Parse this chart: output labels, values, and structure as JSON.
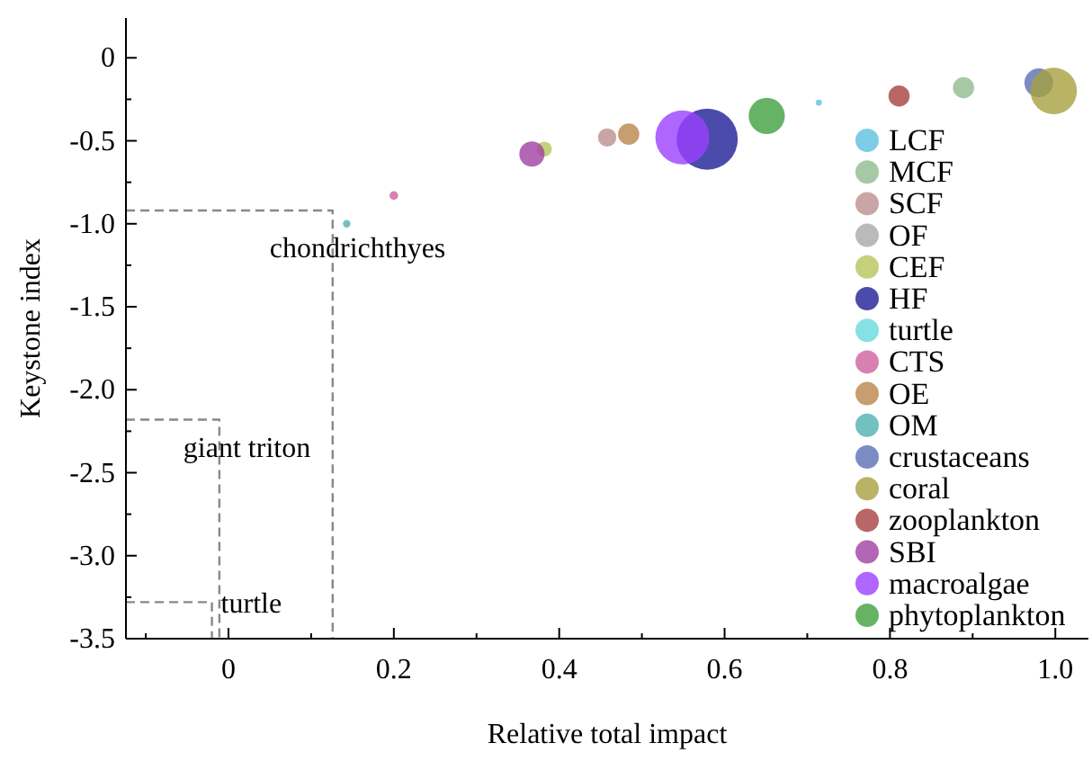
{
  "chart_data": {
    "type": "bubble",
    "xlabel": "Relative total impact",
    "ylabel": "Keystone index",
    "xlim": [
      -0.124,
      1.04
    ],
    "ylim": [
      -3.5,
      0.24
    ],
    "xticks": [
      0,
      0.2,
      0.4,
      0.6,
      0.8,
      {
        "value": 1,
        "label": "1.0"
      }
    ],
    "yticks": [
      0,
      -0.5,
      {
        "value": -1,
        "label": "-1.0"
      },
      -1.5,
      {
        "value": -2,
        "label": "-2.0"
      },
      -2.5,
      {
        "value": -3,
        "label": "-3.0"
      },
      -3.5
    ],
    "legend": "right",
    "grid": false,
    "series": [
      {
        "name": "LCF",
        "color": "#5bc0de",
        "x": [
          0.714
        ],
        "values": [
          -0.27
        ],
        "sizes": [
          0.01
        ]
      },
      {
        "name": "MCF",
        "color": "#8fbc8f",
        "x": [
          0.889
        ],
        "values": [
          -0.18
        ],
        "sizes": [
          0.12
        ]
      },
      {
        "name": "SCF",
        "color": "#bc8f8f",
        "x": [
          0.458
        ],
        "values": [
          -0.48
        ],
        "sizes": [
          0.09
        ]
      },
      {
        "name": "OF",
        "color": "#a9a9a9"
      },
      {
        "name": "CEF",
        "color": "#b5c45a",
        "x": [
          0.382
        ],
        "values": [
          -0.55
        ],
        "sizes": [
          0.06
        ]
      },
      {
        "name": "HF",
        "color": "#1e1e96",
        "x": [
          0.579
        ],
        "values": [
          -0.49
        ],
        "sizes": [
          1
        ]
      },
      {
        "name": "turtle",
        "color": "#66d9dc"
      },
      {
        "name": "CTS",
        "color": "#d060a0",
        "x": [
          0.2
        ],
        "values": [
          -0.83
        ],
        "sizes": [
          0.02
        ]
      },
      {
        "name": "OE",
        "color": "#b8864b",
        "x": [
          0.484
        ],
        "values": [
          -0.46
        ],
        "sizes": [
          0.12
        ]
      },
      {
        "name": "OM",
        "color": "#4fb0b0",
        "x": [
          0.143
        ],
        "values": [
          -1.0
        ],
        "sizes": [
          0.015
        ]
      },
      {
        "name": "crustaceans",
        "color": "#5a6fb5",
        "x": [
          0.98
        ],
        "values": [
          -0.15
        ],
        "sizes": [
          0.22
        ]
      },
      {
        "name": "coral",
        "color": "#a8a040",
        "x": [
          0.998
        ],
        "values": [
          -0.2
        ],
        "sizes": [
          0.58
        ]
      },
      {
        "name": "zooplankton",
        "color": "#a84040",
        "x": [
          0.811
        ],
        "values": [
          -0.23
        ],
        "sizes": [
          0.12
        ]
      },
      {
        "name": "SBI",
        "color": "#a040a0",
        "x": [
          0.367
        ],
        "values": [
          -0.58
        ],
        "sizes": [
          0.17
        ]
      },
      {
        "name": "macroalgae",
        "color": "#9a40ff",
        "x": [
          0.549
        ],
        "values": [
          -0.48
        ],
        "sizes": [
          0.78
        ]
      },
      {
        "name": "phytoplankton",
        "color": "#40a040",
        "x": [
          0.651
        ],
        "values": [
          -0.35
        ],
        "sizes": [
          0.35
        ]
      },
      {
        "type": "line",
        "line_style": "dashed",
        "color": "#888888",
        "x": [
          -0.124,
          0.126,
          0.126
        ],
        "values": [
          -0.92,
          -0.92,
          -3.5
        ]
      },
      {
        "type": "line",
        "line_style": "dashed",
        "color": "#888888",
        "x": [
          -0.124,
          -0.011,
          -0.011
        ],
        "values": [
          -2.18,
          -2.18,
          -3.5
        ]
      },
      {
        "type": "line",
        "line_style": "dashed",
        "color": "#888888",
        "x": [
          -0.124,
          -0.02,
          -0.02
        ],
        "values": [
          -3.28,
          -3.28,
          -3.5
        ]
      }
    ],
    "annotations": [
      "chondrichthyes",
      "giant triton",
      "turtle"
    ]
  }
}
